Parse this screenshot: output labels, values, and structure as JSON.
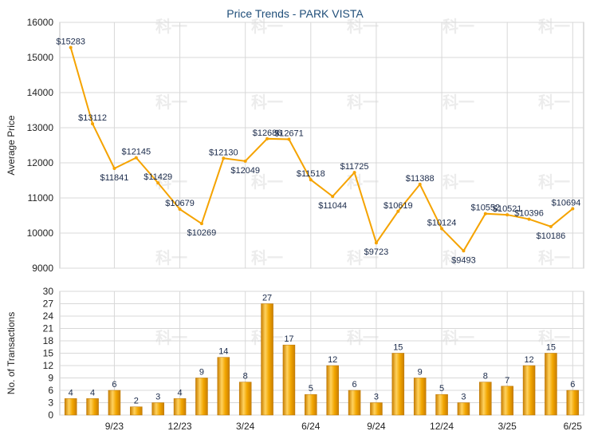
{
  "title": "Price Trends - PARK VISTA",
  "watermark": "科一",
  "colors": {
    "line": "#f5a300",
    "bar_top": "#ffe08a",
    "bar_mid": "#f2a600",
    "bar_dark": "#c97e00",
    "grid": "#d8d8d8",
    "title": "#1f4e79",
    "label": "#1a2a4a"
  },
  "chart_data": [
    {
      "type": "line",
      "ylabel": "Average Price",
      "ylim": [
        9000,
        16000
      ],
      "yticks": [
        9000,
        10000,
        11000,
        12000,
        13000,
        14000,
        15000,
        16000
      ],
      "x": [
        "7/23",
        "8/23",
        "9/23",
        "10/23",
        "11/23",
        "12/23",
        "1/24",
        "2/24",
        "3/24",
        "4/24",
        "5/24",
        "6/24",
        "7/24",
        "8/24",
        "9/24",
        "10/24",
        "11/24",
        "12/24",
        "1/25",
        "2/25",
        "3/25",
        "4/25",
        "5/25",
        "6/25"
      ],
      "values": [
        15283,
        13112,
        11841,
        12145,
        11429,
        10679,
        10269,
        12130,
        12049,
        12686,
        12671,
        11518,
        11044,
        11725,
        9723,
        10619,
        11388,
        10124,
        9493,
        10552,
        10521,
        10396,
        10186,
        10694
      ],
      "labels": [
        "$15283",
        "$13112",
        "$11841",
        "$12145",
        "$11429",
        "$10679",
        "$10269",
        "$12130",
        "$12049",
        "$12686",
        "$12671",
        "$11518",
        "$11044",
        "$11725",
        "$9723",
        "$10619",
        "$11388",
        "$10124",
        "$9493",
        "$10552",
        "$10521",
        "$10396",
        "$10186",
        "$10694"
      ]
    },
    {
      "type": "bar",
      "ylabel": "No. of Transactions",
      "ylim": [
        0,
        30
      ],
      "yticks": [
        0,
        3,
        6,
        9,
        12,
        15,
        18,
        21,
        24,
        27,
        30
      ],
      "x": [
        "7/23",
        "8/23",
        "9/23",
        "10/23",
        "11/23",
        "12/23",
        "1/24",
        "2/24",
        "3/24",
        "4/24",
        "5/24",
        "6/24",
        "7/24",
        "8/24",
        "9/24",
        "10/24",
        "11/24",
        "12/24",
        "1/25",
        "2/25",
        "3/25",
        "4/25",
        "5/25",
        "6/25"
      ],
      "values": [
        4,
        4,
        6,
        2,
        3,
        4,
        9,
        14,
        8,
        27,
        17,
        5,
        12,
        6,
        3,
        15,
        9,
        5,
        3,
        8,
        7,
        12,
        15,
        6
      ],
      "xtick_labels": [
        {
          "index": 2,
          "label": "9/23"
        },
        {
          "index": 5,
          "label": "12/23"
        },
        {
          "index": 8,
          "label": "3/24"
        },
        {
          "index": 11,
          "label": "6/24"
        },
        {
          "index": 14,
          "label": "9/24"
        },
        {
          "index": 17,
          "label": "12/24"
        },
        {
          "index": 20,
          "label": "3/25"
        },
        {
          "index": 23,
          "label": "6/25"
        }
      ]
    }
  ]
}
